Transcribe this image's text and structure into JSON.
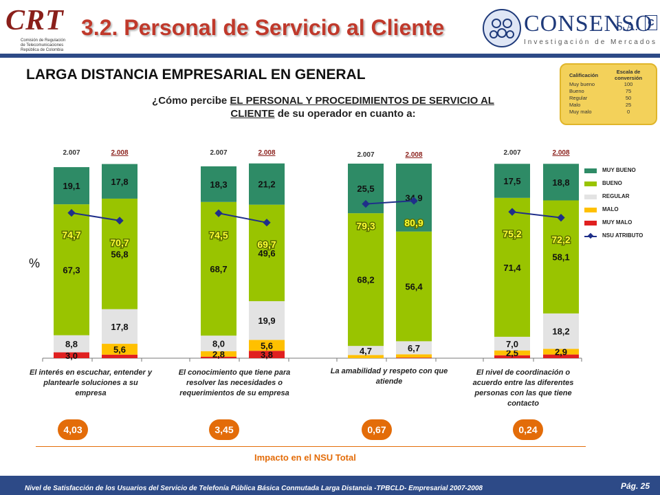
{
  "header": {
    "logo_left": "CRT",
    "logo_left_sub": [
      "Comisión de Regulación",
      "de Telecomunicaciones",
      "República de Colombia"
    ],
    "title": "3.2. Personal de Servicio al Cliente",
    "logo_right_name": "CONSENSO",
    "logo_right_sa": "S.A.",
    "logo_right_sub": "Investigación de Mercados",
    "logo_right_badge": "C"
  },
  "subtitle": "LARGA DISTANCIA EMPRESARIAL EN GENERAL",
  "question": {
    "prefix": "¿Cómo percibe ",
    "emph": "EL PERSONAL Y PROCEDIMIENTOS DE SERVICIO AL CLIENTE",
    "suffix": " de su operador en cuanto a:"
  },
  "scale_box": {
    "col1": "Calificación",
    "col2": "Escala de conversión",
    "rows": [
      {
        "label": "Muy bueno",
        "value": "100"
      },
      {
        "label": "Bueno",
        "value": "75"
      },
      {
        "label": "Regular",
        "value": "50"
      },
      {
        "label": "Malo",
        "value": "25"
      },
      {
        "label": "Muy malo",
        "value": "0"
      }
    ]
  },
  "y_unit": "%",
  "colors": {
    "muy_bueno": "#2e8b66",
    "bueno": "#99c400",
    "regular": "#e3e3e3",
    "malo": "#ffc000",
    "muy_malo": "#e02020",
    "nsu": "#1f2f8a",
    "impact": "#e36c09",
    "bar_blue": "#2d4a87",
    "title": "#c0392b"
  },
  "chart_data": {
    "type": "bar",
    "stacked": true,
    "ylim": [
      0,
      100
    ],
    "legend_position": "right",
    "series_names": [
      "MUY BUENO",
      "BUENO",
      "REGULAR",
      "MALO",
      "MUY MALO",
      "NSU ATRIBUTO"
    ],
    "groups": [
      {
        "label": "El interés en escuchar, entender y plantearle soluciones a su empresa",
        "impact": "4,03",
        "bars": [
          {
            "year": "2.007",
            "muy_malo": 3.0,
            "muy_malo_label": "3,0",
            "malo": null,
            "regular": 8.8,
            "regular_label": "8,8",
            "bueno": 67.3,
            "bueno_label": "67,3",
            "muy_bueno": 19.1,
            "muy_bueno_label": "19,1",
            "nsu": 74.7,
            "nsu_label": "74,7"
          },
          {
            "year": "2.008",
            "muy_malo": 1.8,
            "muy_malo_label": "",
            "malo": 5.6,
            "malo_label": "5,6",
            "regular": 17.8,
            "regular_label": "17,8",
            "bueno": 56.8,
            "bueno_label": "56,8",
            "muy_bueno": 17.8,
            "muy_bueno_label": "17,8",
            "nsu": 70.7,
            "nsu_label": "70,7"
          }
        ]
      },
      {
        "label": "El conocimiento que tiene para resolver las necesidades o requerimientos de su empresa",
        "impact": "3,45",
        "bars": [
          {
            "year": "2.007",
            "muy_malo": 0.8,
            "muy_malo_label": "",
            "malo": 2.8,
            "malo_label": "2,8",
            "regular": 8.0,
            "regular_label": "8,0",
            "bueno": 68.7,
            "bueno_label": "68,7",
            "muy_bueno": 18.3,
            "muy_bueno_label": "18,3",
            "nsu": 74.5,
            "nsu_label": "74,5"
          },
          {
            "year": "2.008",
            "muy_malo": 3.8,
            "muy_malo_label": "3,8",
            "malo": 5.6,
            "malo_label": "5,6",
            "regular": 19.9,
            "regular_label": "19,9",
            "bueno": 49.6,
            "bueno_label": "49,6",
            "muy_bueno": 21.2,
            "muy_bueno_label": "21,2",
            "nsu": 69.7,
            "nsu_label": "69,7"
          }
        ]
      },
      {
        "label": "La amabilidad y respeto con que atiende",
        "impact": "0,67",
        "bars": [
          {
            "year": "2.007",
            "muy_malo": 0.0,
            "muy_malo_label": "",
            "malo": 1.6,
            "malo_label": "",
            "regular": 4.7,
            "regular_label": "4,7",
            "bueno": 68.2,
            "bueno_label": "68,2",
            "muy_bueno": 25.5,
            "muy_bueno_label": "25,5",
            "nsu": 79.3,
            "nsu_label": "79,3"
          },
          {
            "year": "2.008",
            "muy_malo": 0.3,
            "muy_malo_label": "",
            "malo": 1.7,
            "malo_label": "",
            "regular": 6.7,
            "regular_label": "6,7",
            "bueno": 56.4,
            "bueno_label": "56,4",
            "muy_bueno": 34.9,
            "muy_bueno_label": "34,9",
            "nsu": 80.9,
            "nsu_label": "80,9"
          }
        ]
      },
      {
        "label": "El nivel de coordinación o acuerdo entre las diferentes personas con las que tiene contacto",
        "impact": "0,24",
        "bars": [
          {
            "year": "2.007",
            "muy_malo": 1.5,
            "muy_malo_label": "",
            "malo": 2.5,
            "malo_label": "2,5",
            "regular": 7.0,
            "regular_label": "7,0",
            "bueno": 71.4,
            "bueno_label": "71,4",
            "muy_bueno": 17.5,
            "muy_bueno_label": "17,5",
            "nsu": 75.2,
            "nsu_label": "75,2"
          },
          {
            "year": "2.008",
            "muy_malo": 1.9,
            "muy_malo_label": "",
            "malo": 2.9,
            "malo_label": "2,9",
            "regular": 18.2,
            "regular_label": "18,2",
            "bueno": 58.1,
            "bueno_label": "58,1",
            "muy_bueno": 18.8,
            "muy_bueno_label": "18,8",
            "nsu": 72.2,
            "nsu_label": "72,2"
          }
        ]
      }
    ]
  },
  "impact_label": "Impacto en el NSU Total",
  "footer": {
    "text": "Nivel de Satisfacción de los Usuarios del Servicio de Telefonía Pública Básica Conmutada Larga Distancia -TPBCLD- Empresarial 2007-2008",
    "page": "Pág. 25"
  }
}
